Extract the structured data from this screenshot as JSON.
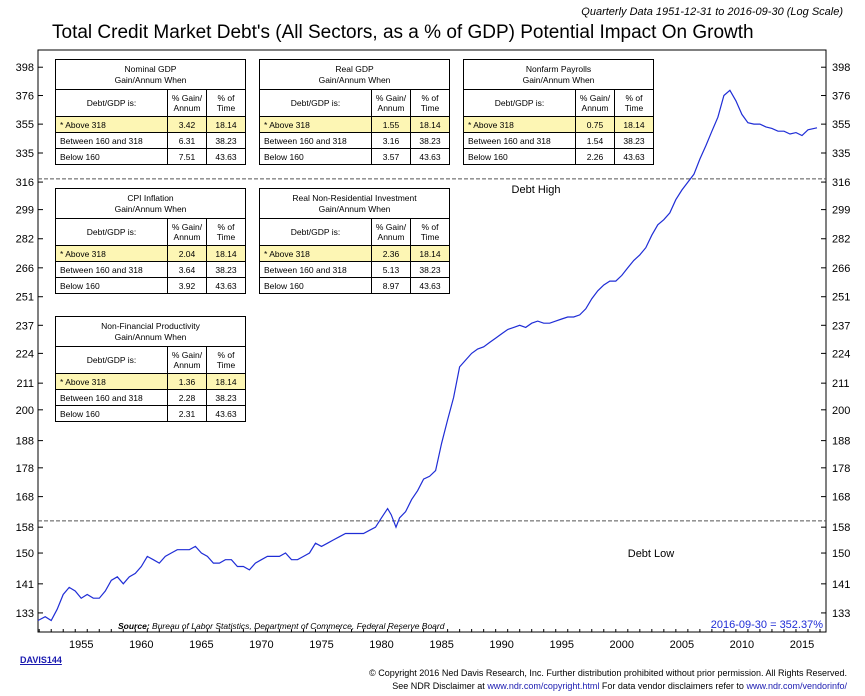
{
  "header": {
    "subtitle": "Quarterly Data 1951-12-31 to 2016-09-30 (Log Scale)",
    "title": "Total Credit Market Debt's (All Sectors, as a % of GDP) Potential Impact On Growth"
  },
  "chart_data": {
    "type": "line",
    "title": "Total Credit Market Debt's (All Sectors, as a % of GDP) Potential Impact On Growth",
    "xlabel": "",
    "ylabel": "",
    "y_scale": "log",
    "xlim": [
      1951.9,
      2017.5
    ],
    "ylim": [
      128,
      412
    ],
    "y_ticks": [
      "133",
      "141",
      "150",
      "158",
      "168",
      "178",
      "188",
      "200",
      "211",
      "224",
      "237",
      "251",
      "266",
      "282",
      "299",
      "316",
      "335",
      "355",
      "376",
      "398"
    ],
    "x_ticks": [
      "1955",
      "1960",
      "1965",
      "1970",
      "1975",
      "1980",
      "1985",
      "1990",
      "1995",
      "2000",
      "2005",
      "2010",
      "2015"
    ],
    "grid": false,
    "line_color": "#1f2dd6",
    "series": [
      {
        "points": [
          [
            1951.9,
            131
          ],
          [
            1952.5,
            132
          ],
          [
            1953.0,
            131
          ],
          [
            1953.5,
            134
          ],
          [
            1954.0,
            138
          ],
          [
            1954.5,
            140
          ],
          [
            1955.0,
            139
          ],
          [
            1955.5,
            137
          ],
          [
            1956.0,
            138
          ],
          [
            1956.5,
            137
          ],
          [
            1957.0,
            137
          ],
          [
            1957.5,
            139
          ],
          [
            1958.0,
            142
          ],
          [
            1958.5,
            143
          ],
          [
            1959.0,
            141
          ],
          [
            1959.5,
            143
          ],
          [
            1960.0,
            144
          ],
          [
            1960.5,
            146
          ],
          [
            1961.0,
            149
          ],
          [
            1961.5,
            148
          ],
          [
            1962.0,
            147
          ],
          [
            1962.5,
            149
          ],
          [
            1963.0,
            150
          ],
          [
            1963.5,
            151
          ],
          [
            1964.0,
            151
          ],
          [
            1964.5,
            151
          ],
          [
            1965.0,
            152
          ],
          [
            1965.5,
            150
          ],
          [
            1966.0,
            149
          ],
          [
            1966.5,
            147
          ],
          [
            1967.0,
            147
          ],
          [
            1967.5,
            148
          ],
          [
            1968.0,
            148
          ],
          [
            1968.5,
            146
          ],
          [
            1969.0,
            146
          ],
          [
            1969.5,
            145
          ],
          [
            1970.0,
            147
          ],
          [
            1970.5,
            148
          ],
          [
            1971.0,
            149
          ],
          [
            1971.5,
            149
          ],
          [
            1972.0,
            149
          ],
          [
            1972.5,
            150
          ],
          [
            1973.0,
            148
          ],
          [
            1973.5,
            148
          ],
          [
            1974.0,
            149
          ],
          [
            1974.5,
            150
          ],
          [
            1975.0,
            153
          ],
          [
            1975.5,
            152
          ],
          [
            1976.0,
            153
          ],
          [
            1976.5,
            154
          ],
          [
            1977.0,
            155
          ],
          [
            1977.5,
            156
          ],
          [
            1978.0,
            156
          ],
          [
            1978.5,
            156
          ],
          [
            1979.0,
            156
          ],
          [
            1979.5,
            157
          ],
          [
            1980.0,
            158
          ],
          [
            1980.5,
            161
          ],
          [
            1981.0,
            164
          ],
          [
            1981.3,
            162
          ],
          [
            1981.7,
            158
          ],
          [
            1982.0,
            161
          ],
          [
            1982.5,
            163
          ],
          [
            1983.0,
            167
          ],
          [
            1983.5,
            170
          ],
          [
            1984.0,
            174
          ],
          [
            1984.5,
            175
          ],
          [
            1985.0,
            177
          ],
          [
            1985.5,
            187
          ],
          [
            1986.0,
            196
          ],
          [
            1986.5,
            205
          ],
          [
            1987.0,
            218
          ],
          [
            1987.5,
            221
          ],
          [
            1988.0,
            224
          ],
          [
            1988.5,
            226
          ],
          [
            1989.0,
            227
          ],
          [
            1989.5,
            229
          ],
          [
            1990.0,
            231
          ],
          [
            1990.5,
            233
          ],
          [
            1991.0,
            235
          ],
          [
            1991.5,
            236
          ],
          [
            1992.0,
            237
          ],
          [
            1992.5,
            236
          ],
          [
            1993.0,
            238
          ],
          [
            1993.5,
            239
          ],
          [
            1994.0,
            238
          ],
          [
            1994.5,
            238
          ],
          [
            1995.0,
            239
          ],
          [
            1995.5,
            240
          ],
          [
            1996.0,
            241
          ],
          [
            1996.5,
            241
          ],
          [
            1997.0,
            242
          ],
          [
            1997.5,
            245
          ],
          [
            1998.0,
            250
          ],
          [
            1998.5,
            254
          ],
          [
            1999.0,
            257
          ],
          [
            1999.5,
            259
          ],
          [
            2000.0,
            259
          ],
          [
            2000.5,
            262
          ],
          [
            2001.0,
            266
          ],
          [
            2001.5,
            270
          ],
          [
            2002.0,
            273
          ],
          [
            2002.5,
            277
          ],
          [
            2003.0,
            284
          ],
          [
            2003.5,
            290
          ],
          [
            2004.0,
            293
          ],
          [
            2004.5,
            297
          ],
          [
            2005.0,
            305
          ],
          [
            2005.5,
            311
          ],
          [
            2006.0,
            316
          ],
          [
            2006.5,
            321
          ],
          [
            2007.0,
            331
          ],
          [
            2007.5,
            340
          ],
          [
            2008.0,
            350
          ],
          [
            2008.5,
            360
          ],
          [
            2009.0,
            376
          ],
          [
            2009.5,
            380
          ],
          [
            2010.0,
            372
          ],
          [
            2010.5,
            362
          ],
          [
            2011.0,
            356
          ],
          [
            2011.5,
            355
          ],
          [
            2012.0,
            355
          ],
          [
            2012.5,
            353
          ],
          [
            2013.0,
            352
          ],
          [
            2013.5,
            350
          ],
          [
            2014.0,
            350
          ],
          [
            2014.5,
            348
          ],
          [
            2015.0,
            349
          ],
          [
            2015.5,
            347
          ],
          [
            2016.0,
            351
          ],
          [
            2016.75,
            352.37
          ]
        ]
      }
    ],
    "reference_lines": [
      {
        "value": 318,
        "label": "Debt High"
      },
      {
        "value": 160,
        "label": "Debt Low"
      }
    ],
    "end_label": "2016-09-30 = 352.37%"
  },
  "tables": [
    {
      "title": "Nominal GDP",
      "subtitle": "Gain/Annum When",
      "col_label": "Debt/GDP is:",
      "col_gain": [
        "% Gain/",
        "Annum"
      ],
      "col_time": [
        "% of",
        "Time"
      ],
      "rows": [
        {
          "label": "* Above 318",
          "gain": "3.42",
          "time": "18.14"
        },
        {
          "label": "Between 160 and 318",
          "gain": "6.31",
          "time": "38.23"
        },
        {
          "label": "Below 160",
          "gain": "7.51",
          "time": "43.63"
        }
      ]
    },
    {
      "title": "Real GDP",
      "subtitle": "Gain/Annum When",
      "col_label": "Debt/GDP is:",
      "col_gain": [
        "% Gain/",
        "Annum"
      ],
      "col_time": [
        "% of",
        "Time"
      ],
      "rows": [
        {
          "label": "* Above 318",
          "gain": "1.55",
          "time": "18.14"
        },
        {
          "label": "Between 160 and 318",
          "gain": "3.16",
          "time": "38.23"
        },
        {
          "label": "Below 160",
          "gain": "3.57",
          "time": "43.63"
        }
      ]
    },
    {
      "title": "Nonfarm Payrolls",
      "subtitle": "Gain/Annum When",
      "col_label": "Debt/GDP is:",
      "col_gain": [
        "% Gain/",
        "Annum"
      ],
      "col_time": [
        "% of",
        "Time"
      ],
      "rows": [
        {
          "label": "* Above 318",
          "gain": "0.75",
          "time": "18.14"
        },
        {
          "label": "Between 160 and 318",
          "gain": "1.54",
          "time": "38.23"
        },
        {
          "label": "Below 160",
          "gain": "2.26",
          "time": "43.63"
        }
      ]
    },
    {
      "title": "CPI Inflation",
      "subtitle": "Gain/Annum When",
      "col_label": "Debt/GDP is:",
      "col_gain": [
        "% Gain/",
        "Annum"
      ],
      "col_time": [
        "% of",
        "Time"
      ],
      "rows": [
        {
          "label": "* Above 318",
          "gain": "2.04",
          "time": "18.14"
        },
        {
          "label": "Between 160 and 318",
          "gain": "3.64",
          "time": "38.23"
        },
        {
          "label": "Below 160",
          "gain": "3.92",
          "time": "43.63"
        }
      ]
    },
    {
      "title": "Real Non-Residential Investment",
      "subtitle": "Gain/Annum When",
      "col_label": "Debt/GDP is:",
      "col_gain": [
        "% Gain/",
        "Annum"
      ],
      "col_time": [
        "% of",
        "Time"
      ],
      "rows": [
        {
          "label": "* Above 318",
          "gain": "2.36",
          "time": "18.14"
        },
        {
          "label": "Between 160 and 318",
          "gain": "5.13",
          "time": "38.23"
        },
        {
          "label": "Below 160",
          "gain": "8.97",
          "time": "43.63"
        }
      ]
    },
    {
      "title": "Non-Financial Productivity",
      "subtitle": "Gain/Annum When",
      "col_label": "Debt/GDP is:",
      "col_gain": [
        "% Gain/",
        "Annum"
      ],
      "col_time": [
        "% of",
        "Time"
      ],
      "rows": [
        {
          "label": "* Above 318",
          "gain": "1.36",
          "time": "18.14"
        },
        {
          "label": "Between 160 and 318",
          "gain": "2.28",
          "time": "38.23"
        },
        {
          "label": "Below 160",
          "gain": "2.31",
          "time": "43.63"
        }
      ]
    }
  ],
  "highlight_color": "#fdf6b4",
  "footer": {
    "source_label": "Source:",
    "source_text": "Bureau of Labor Statistics, Department of Commerce, Federal Reserve Board",
    "chart_code": "DAVIS144",
    "copyright": "© Copyright 2016 Ned Davis Research, Inc. Further distribution prohibited without prior permission. All Rights Reserved.",
    "disclaimer_prefix": "See NDR Disclaimer at",
    "disclaimer_link": "www.ndr.com/copyright.html",
    "vendor_prefix": "For data vendor disclaimers refer to",
    "vendor_link": "www.ndr.com/vendorinfo/"
  }
}
